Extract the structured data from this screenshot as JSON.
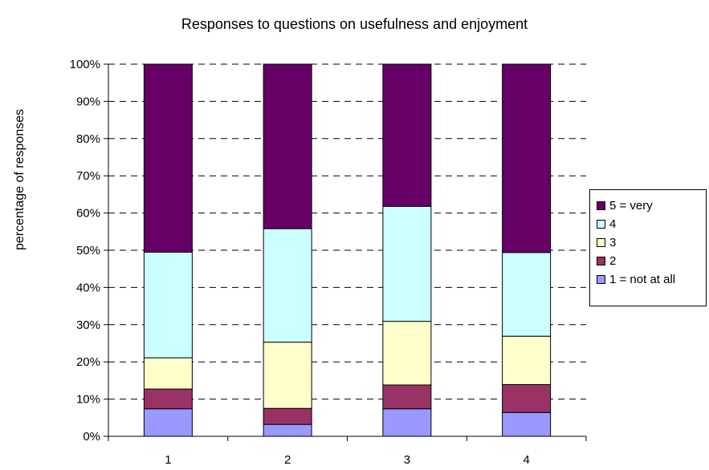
{
  "chart_data": {
    "type": "bar",
    "stacked": true,
    "percent_stacked": true,
    "title": "Responses to questions on usefulness and enjoyment",
    "xlabel": "",
    "ylabel": "percentage of responses",
    "categories": [
      "1",
      "2",
      "3",
      "4"
    ],
    "yticks": [
      "0%",
      "10%",
      "20%",
      "30%",
      "40%",
      "50%",
      "60%",
      "70%",
      "80%",
      "90%",
      "100%"
    ],
    "ylim": [
      0,
      100
    ],
    "grid": "horizontal dashed",
    "legend_position": "right",
    "series": [
      {
        "name": "1 = not at all",
        "color": "#9999ff",
        "values": [
          7.4,
          3.2,
          7.4,
          6.4
        ]
      },
      {
        "name": "2",
        "color": "#993366",
        "values": [
          5.3,
          4.3,
          6.4,
          7.5
        ]
      },
      {
        "name": "3",
        "color": "#ffffcc",
        "values": [
          8.4,
          17.8,
          17.1,
          13.0
        ]
      },
      {
        "name": "4",
        "color": "#ccffff",
        "values": [
          28.4,
          30.5,
          30.9,
          22.5
        ]
      },
      {
        "name": "5 = very",
        "color": "#660066",
        "values": [
          50.5,
          44.2,
          38.2,
          50.6
        ]
      }
    ]
  }
}
